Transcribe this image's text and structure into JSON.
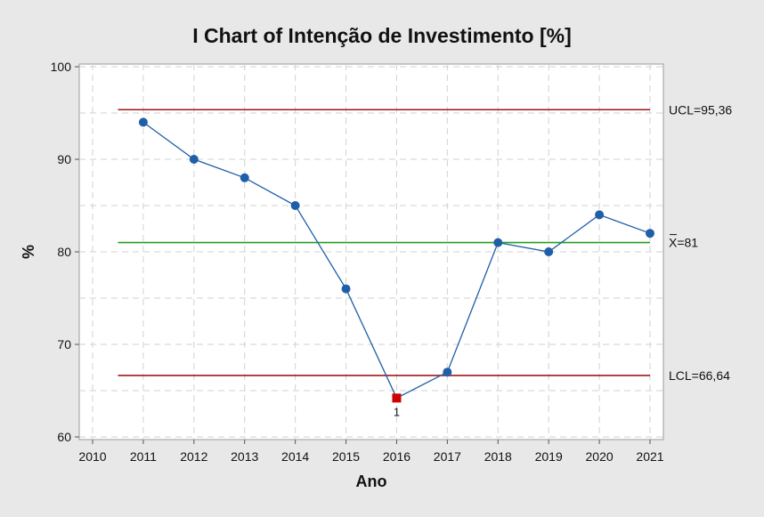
{
  "chart_data": {
    "type": "line",
    "title": "I Chart of Intenção de Investimento [%]",
    "xlabel": "Ano",
    "ylabel": "%",
    "xlim": [
      2010,
      2021
    ],
    "ylim": [
      60,
      100
    ],
    "xticks": [
      "2010",
      "2011",
      "2012",
      "2013",
      "2014",
      "2015",
      "2016",
      "2017",
      "2018",
      "2019",
      "2020",
      "2021"
    ],
    "yticks": [
      "60",
      "70",
      "80",
      "90",
      "100"
    ],
    "grid": true,
    "series": [
      {
        "x": [
          2011,
          2012,
          2013,
          2014,
          2015,
          2016,
          2017,
          2018,
          2019,
          2020,
          2021
        ],
        "values": [
          94,
          90,
          88,
          85,
          76,
          64.2,
          67,
          81,
          80,
          84,
          82
        ],
        "color": "#1f5fa8"
      }
    ],
    "control_lines": [
      {
        "label": "UCL=95,36",
        "value": 95.36,
        "color": "#a01818"
      },
      {
        "label": "X=81",
        "value": 81,
        "color": "#22a022"
      },
      {
        "label": "LCL=66,64",
        "value": 66.64,
        "color": "#a01818"
      }
    ],
    "out_of_control": [
      {
        "x": 2016,
        "value": 64.2,
        "label": "1",
        "color": "#cc0000"
      }
    ]
  }
}
